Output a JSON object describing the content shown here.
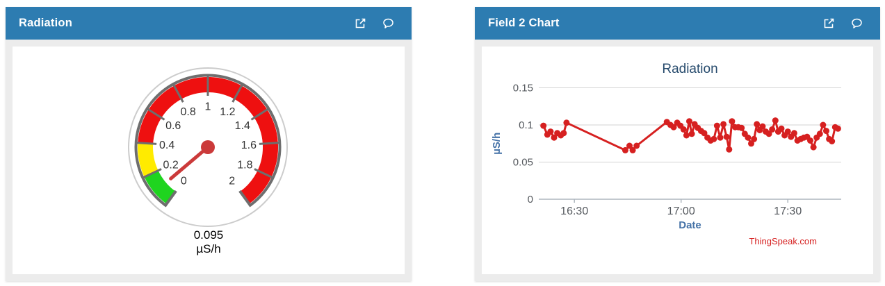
{
  "colors": {
    "page_bg": "#FFFFFF",
    "header_bg": "#2D7CB1",
    "header_text": "#FFFFFF",
    "panel_body_bg": "#ECECEC",
    "card_bg": "#FFFFFF",
    "gauge_ring": "#6E6E6E",
    "gauge_outer_circle": "#CCCCCC",
    "gauge_needle": "#CB3A3A",
    "gauge_label": "#333333",
    "chart_grid": "#D3D3D3",
    "chart_axis": "#AEB6BE",
    "chart_title": "#274B6D",
    "chart_axis_title": "#4572A7",
    "chart_tick_label": "#55595E",
    "chart_line": "#D62020",
    "credit_text": "#D62020"
  },
  "gauge_panel": {
    "title": "Radiation",
    "actions": [
      {
        "name": "open-external",
        "icon": "external-link-icon"
      },
      {
        "name": "comment",
        "icon": "comment-icon"
      }
    ],
    "gauge": {
      "min": 0,
      "max": 2,
      "tick_step": 0.2,
      "tick_labels": [
        "0",
        "0.2",
        "0.4",
        "0.6",
        "0.8",
        "1",
        "1.2",
        "1.4",
        "1.6",
        "1.8",
        "2"
      ],
      "zones": [
        {
          "from": 0,
          "to": 0.2,
          "color": "#1FD41F"
        },
        {
          "from": 0.2,
          "to": 0.4,
          "color": "#FFEB00"
        },
        {
          "from": 0.4,
          "to": 2,
          "color": "#EE1010"
        }
      ],
      "value": 0.095,
      "value_label": "0.095",
      "units": "µS/h"
    }
  },
  "chart_panel": {
    "title": "Field 2 Chart",
    "actions": [
      {
        "name": "open-external",
        "icon": "external-link-icon"
      },
      {
        "name": "comment",
        "icon": "comment-icon"
      }
    ]
  },
  "chart_data": {
    "type": "line",
    "title": "Radiation",
    "xlabel": "Date",
    "ylabel": "µS/h",
    "x_unit": "minutes after 16:00",
    "xlim": [
      20,
      105
    ],
    "ylim": [
      0,
      0.15
    ],
    "xticks": [
      30,
      60,
      90
    ],
    "xtick_labels": [
      "16:30",
      "17:00",
      "17:30"
    ],
    "yticks": [
      0,
      0.05,
      0.1,
      0.15
    ],
    "ytick_labels": [
      "0",
      "0.05",
      "0.1",
      "0.15"
    ],
    "grid": "horizontal",
    "legend": "none",
    "line_color": "#D62020",
    "marker": "circle",
    "credit": "ThingSpeak.com",
    "series": [
      {
        "name": "Radiation",
        "points": [
          [
            21.3,
            0.099
          ],
          [
            22.4,
            0.087
          ],
          [
            23.3,
            0.091
          ],
          [
            24.3,
            0.083
          ],
          [
            25.2,
            0.089
          ],
          [
            26.2,
            0.086
          ],
          [
            27.0,
            0.089
          ],
          [
            27.8,
            0.103
          ],
          [
            44.3,
            0.066
          ],
          [
            45.5,
            0.072
          ],
          [
            46.4,
            0.066
          ],
          [
            47.5,
            0.072
          ],
          [
            56.0,
            0.104
          ],
          [
            57.0,
            0.1
          ],
          [
            57.9,
            0.097
          ],
          [
            58.9,
            0.103
          ],
          [
            59.8,
            0.099
          ],
          [
            60.7,
            0.094
          ],
          [
            61.5,
            0.086
          ],
          [
            62.3,
            0.105
          ],
          [
            63.0,
            0.088
          ],
          [
            63.8,
            0.101
          ],
          [
            64.7,
            0.096
          ],
          [
            65.6,
            0.092
          ],
          [
            66.5,
            0.089
          ],
          [
            67.4,
            0.083
          ],
          [
            68.3,
            0.079
          ],
          [
            69.2,
            0.081
          ],
          [
            70.1,
            0.099
          ],
          [
            71.0,
            0.083
          ],
          [
            71.9,
            0.101
          ],
          [
            72.8,
            0.084
          ],
          [
            73.5,
            0.067
          ],
          [
            74.3,
            0.105
          ],
          [
            75.2,
            0.097
          ],
          [
            76.1,
            0.097
          ],
          [
            77.0,
            0.096
          ],
          [
            77.9,
            0.088
          ],
          [
            78.8,
            0.083
          ],
          [
            79.7,
            0.075
          ],
          [
            80.5,
            0.081
          ],
          [
            81.3,
            0.101
          ],
          [
            82.1,
            0.093
          ],
          [
            82.9,
            0.098
          ],
          [
            83.8,
            0.091
          ],
          [
            84.7,
            0.088
          ],
          [
            85.6,
            0.094
          ],
          [
            86.5,
            0.106
          ],
          [
            87.3,
            0.091
          ],
          [
            88.2,
            0.095
          ],
          [
            89.1,
            0.086
          ],
          [
            90.0,
            0.091
          ],
          [
            90.9,
            0.084
          ],
          [
            91.8,
            0.089
          ],
          [
            92.7,
            0.079
          ],
          [
            93.6,
            0.081
          ],
          [
            94.5,
            0.083
          ],
          [
            95.4,
            0.084
          ],
          [
            96.3,
            0.079
          ],
          [
            97.2,
            0.07
          ],
          [
            98.1,
            0.083
          ],
          [
            99.0,
            0.088
          ],
          [
            99.9,
            0.1
          ],
          [
            100.8,
            0.092
          ],
          [
            101.6,
            0.081
          ],
          [
            102.4,
            0.078
          ],
          [
            103.3,
            0.097
          ],
          [
            104.1,
            0.095
          ]
        ]
      }
    ]
  }
}
